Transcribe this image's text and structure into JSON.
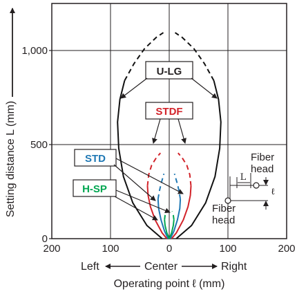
{
  "chart_data": {
    "type": "line",
    "xlabel": "Operating point ℓ (mm)",
    "ylabel": "Setting distance L (mm)",
    "x_direction": {
      "left": "Left",
      "center": "Center",
      "right": "Right"
    },
    "x_ticks": [
      {
        "value": -200,
        "label": "200"
      },
      {
        "value": -100,
        "label": "100"
      },
      {
        "value": 0,
        "label": "0"
      },
      {
        "value": 100,
        "label": "100"
      },
      {
        "value": 200,
        "label": "200"
      }
    ],
    "y_ticks": [
      {
        "value": 0,
        "label": "0"
      },
      {
        "value": 500,
        "label": "500"
      },
      {
        "value": 1000,
        "label": "1,000"
      }
    ],
    "xlim": [
      -200,
      200
    ],
    "ylim": [
      0,
      1250
    ],
    "grid": true,
    "series": [
      {
        "name": "U-LG",
        "color": "#111111",
        "solid": [
          [
            -12,
            0
          ],
          [
            -38,
            70
          ],
          [
            -62,
            190
          ],
          [
            -78,
            330
          ],
          [
            -86,
            480
          ],
          [
            -88,
            620
          ],
          [
            -84,
            740
          ],
          [
            -76,
            840
          ]
        ],
        "dashed": [
          [
            -76,
            840
          ],
          [
            -60,
            930
          ],
          [
            -42,
            1010
          ],
          [
            -22,
            1070
          ],
          [
            -10,
            1095
          ]
        ]
      },
      {
        "name": "STDF",
        "color": "#d2232a",
        "solid": [
          [
            -4,
            0
          ],
          [
            -12,
            30
          ],
          [
            -24,
            100
          ],
          [
            -32,
            170
          ],
          [
            -36,
            230
          ],
          [
            -37,
            280
          ]
        ],
        "dashed": [
          [
            -37,
            280
          ],
          [
            -35,
            340
          ],
          [
            -30,
            390
          ],
          [
            -22,
            430
          ],
          [
            -15,
            455
          ]
        ]
      },
      {
        "name": "STD",
        "color": "#1f78b4",
        "solid": [
          [
            -2,
            0
          ],
          [
            -8,
            40
          ],
          [
            -14,
            100
          ],
          [
            -18,
            160
          ],
          [
            -19,
            210
          ]
        ],
        "dashed": [
          [
            -19,
            210
          ],
          [
            -17,
            250
          ],
          [
            -14,
            290
          ],
          [
            -9,
            345
          ]
        ]
      },
      {
        "name": "H-SP",
        "color": "#00a651",
        "solid": [
          [
            0,
            0
          ],
          [
            -4,
            30
          ],
          [
            -7,
            70
          ],
          [
            -8,
            100
          ]
        ],
        "dashed": [
          [
            -8,
            100
          ],
          [
            -7,
            125
          ],
          [
            -5,
            145
          ]
        ]
      }
    ]
  },
  "legend": {
    "u_lg": "U-LG",
    "stdf": "STDF",
    "std": "STD",
    "h_sp": "H-SP"
  },
  "inset": {
    "fiber_head_top": [
      "Fiber",
      "head"
    ],
    "fiber_head_bottom": [
      "Fiber",
      "head"
    ],
    "l_symbol": "L",
    "ell_symbol": "ℓ"
  }
}
